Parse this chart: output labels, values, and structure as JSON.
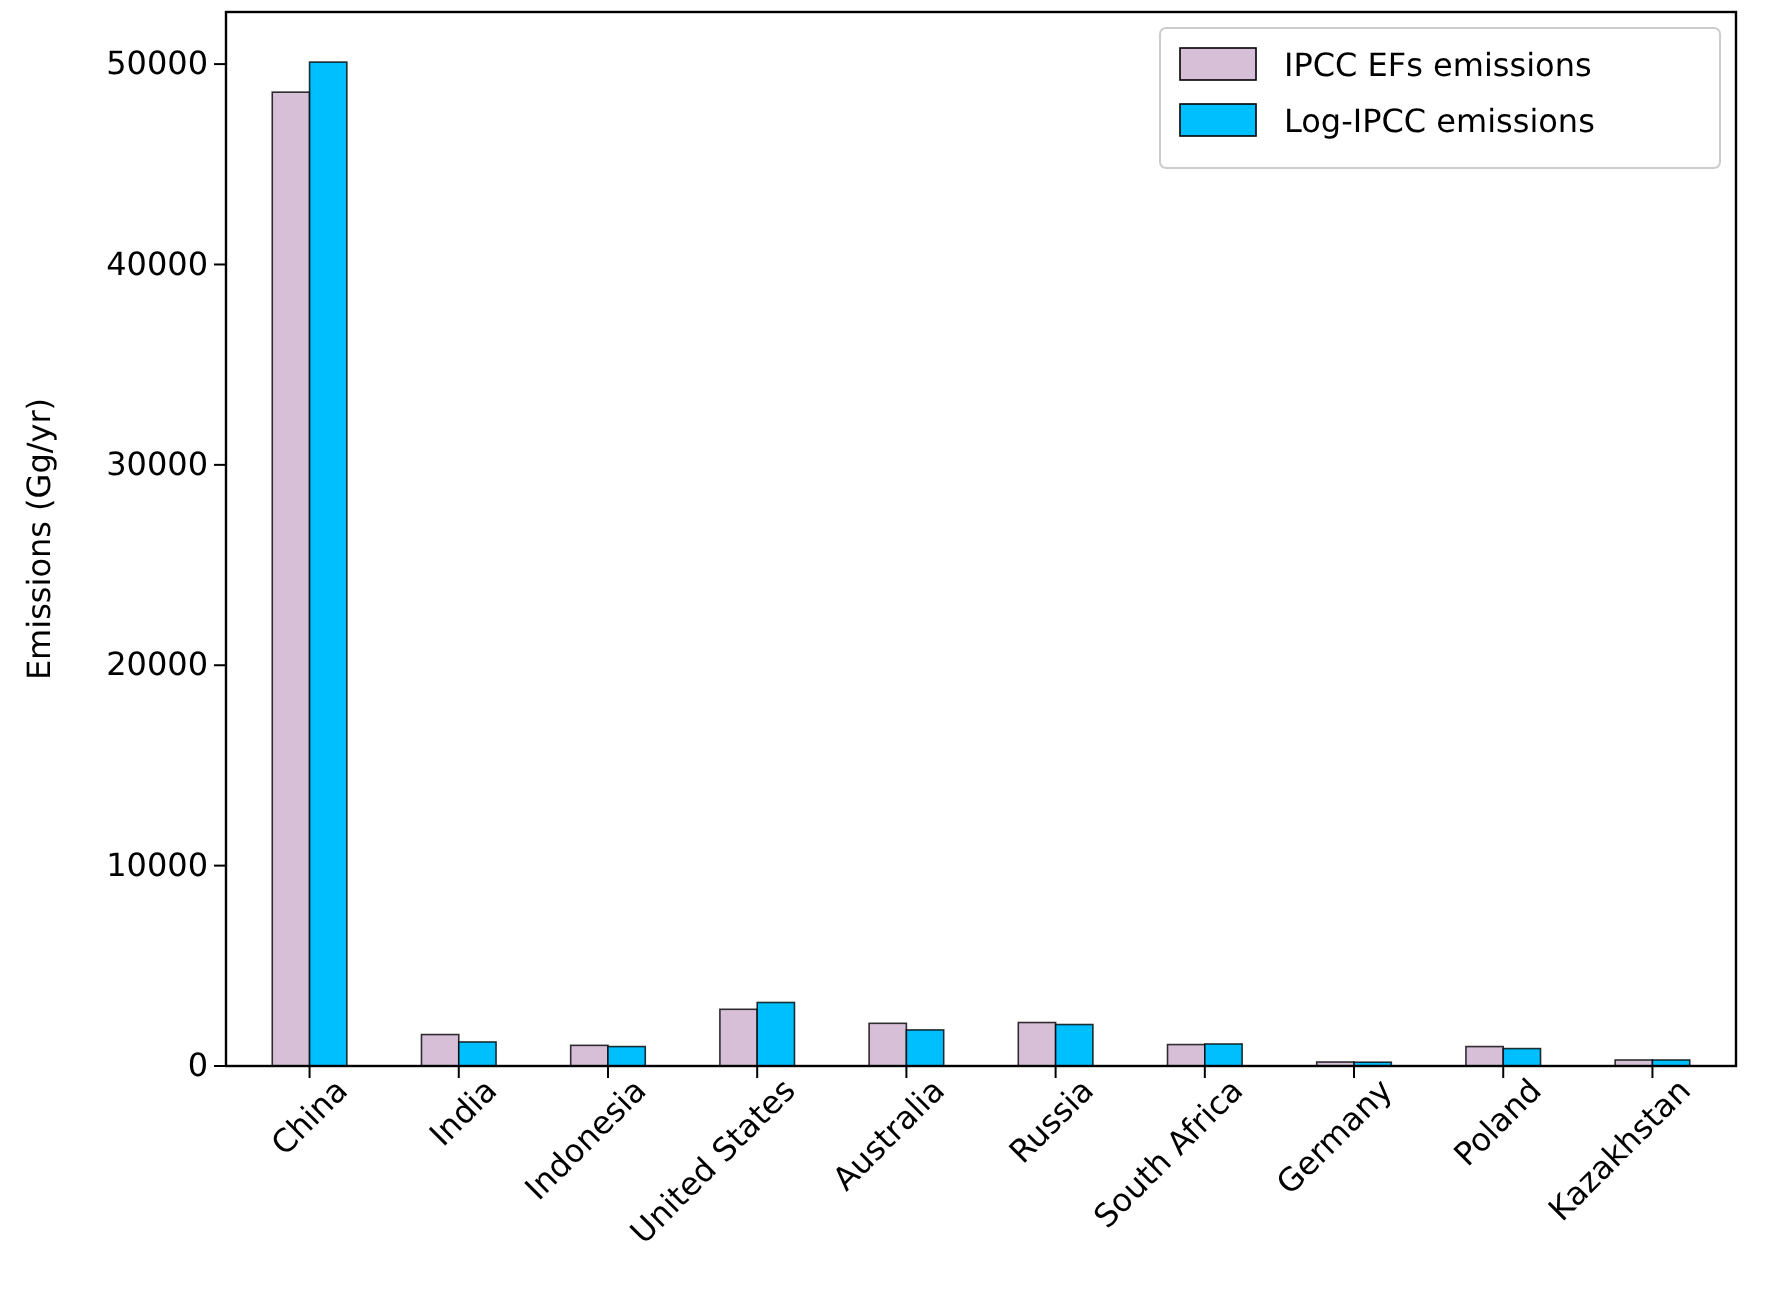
{
  "chart_data": {
    "type": "bar",
    "ylabel": "Emissions (Gg/yr)",
    "categories": [
      "China",
      "India",
      "Indonesia",
      "United States",
      "Australia",
      "Russia",
      "South Africa",
      "Germany",
      "Poland",
      "Kazakhstan"
    ],
    "series": [
      {
        "name": "IPCC EFs emissions",
        "color": "#d8bfd8",
        "values": [
          48600,
          1570,
          1030,
          2830,
          2130,
          2170,
          1070,
          200,
          970,
          300
        ]
      },
      {
        "name": "Log-IPCC emissions",
        "color": "#00bfff",
        "values": [
          50100,
          1200,
          970,
          3170,
          1800,
          2070,
          1100,
          190,
          870,
          300
        ]
      }
    ],
    "ylim": [
      0,
      52600
    ],
    "yticks": [
      0,
      10000,
      20000,
      30000,
      40000,
      50000
    ],
    "legend": "top right",
    "grid": false
  }
}
